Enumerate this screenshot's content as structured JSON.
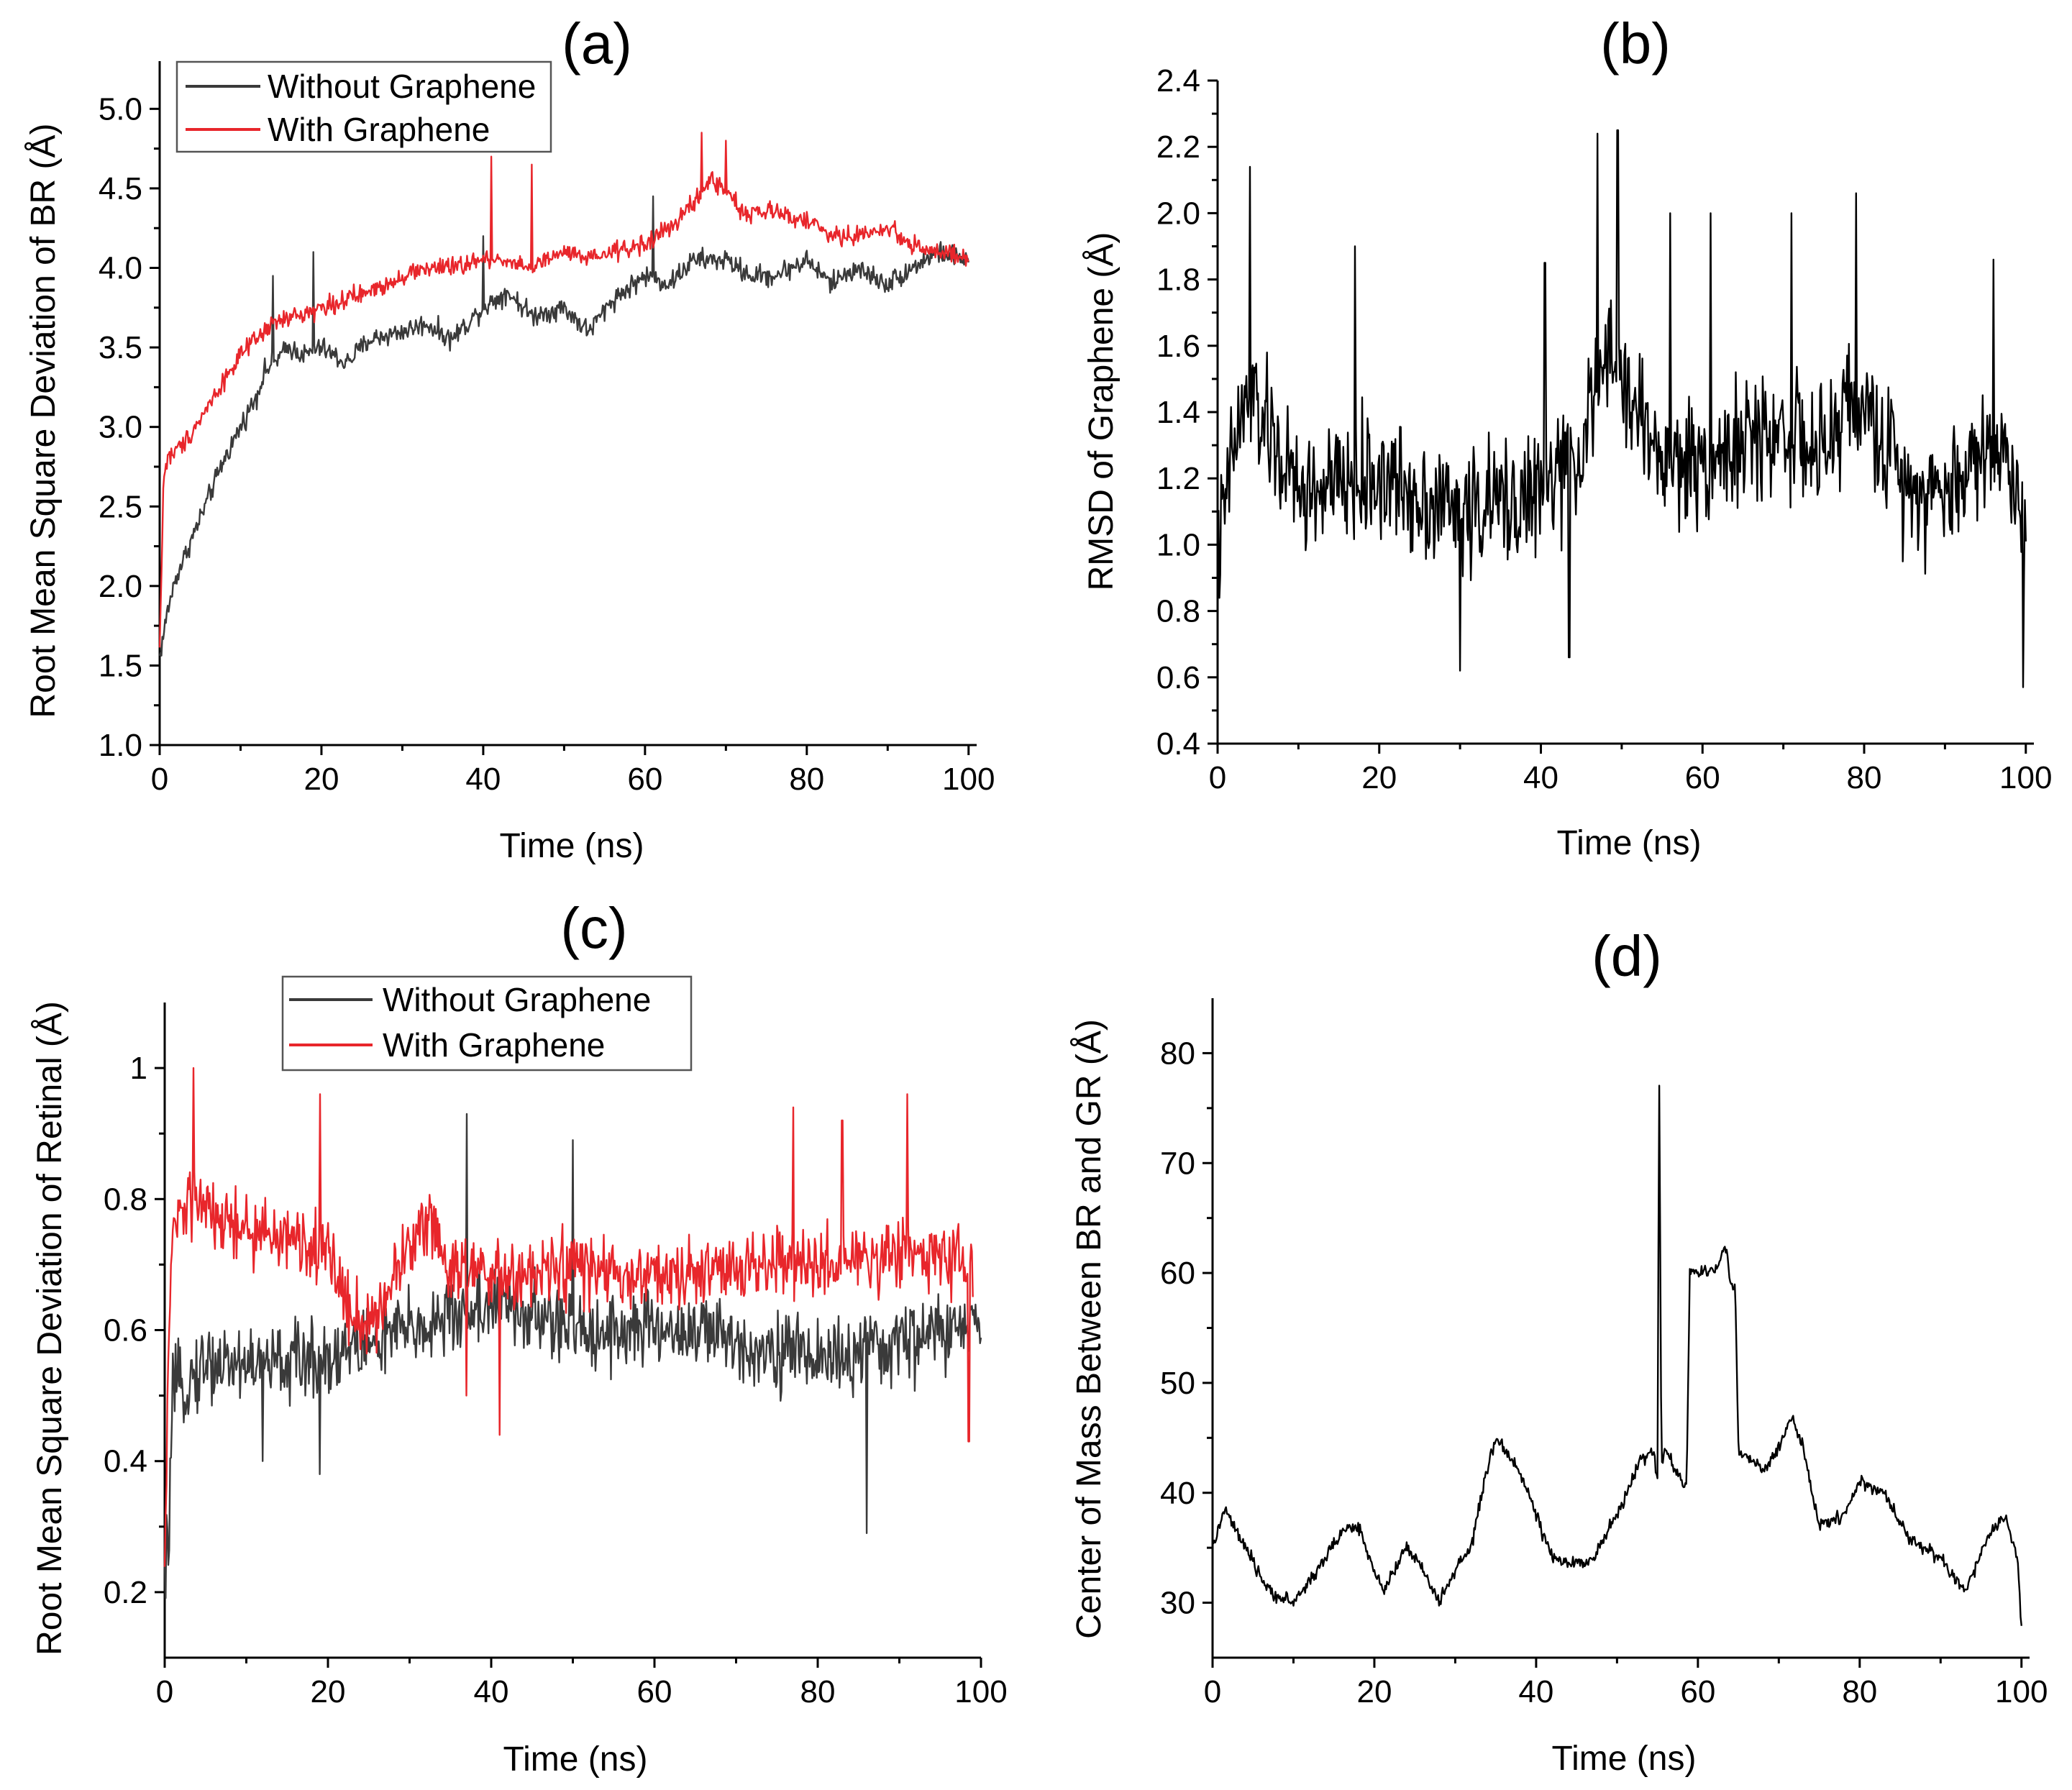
{
  "chart_data": [
    {
      "id": "a",
      "panel_label": "(a)",
      "type": "line",
      "title": "",
      "xlabel": "Time (ns)",
      "ylabel": "Root Mean Square Deviation of BR (Å)",
      "xlim": [
        0,
        101
      ],
      "ylim": [
        1.0,
        5.3
      ],
      "xticks": [
        0,
        20,
        40,
        60,
        80,
        100
      ],
      "yticks": [
        1.0,
        1.5,
        2.0,
        2.5,
        3.0,
        3.5,
        4.0,
        4.5,
        5.0
      ],
      "ytick_labels": [
        "1.0",
        "1.5",
        "2.0",
        "2.5",
        "3.0",
        "3.5",
        "4.0",
        "4.5",
        "5.0"
      ],
      "grid": false,
      "legend": "top-left",
      "series": [
        {
          "name": "Without Graphene",
          "color": "#3a3a3a",
          "x": [
            0,
            1,
            2,
            4,
            6,
            8,
            10,
            12,
            13,
            14,
            16,
            18,
            20,
            23,
            26,
            30,
            33,
            36,
            40,
            43,
            46,
            50,
            53,
            56,
            60,
            63,
            66,
            70,
            73,
            76,
            80,
            83,
            86,
            90,
            93,
            96,
            100
          ],
          "values": [
            1.55,
            1.85,
            2.05,
            2.3,
            2.55,
            2.8,
            3.0,
            3.2,
            3.35,
            3.4,
            3.5,
            3.45,
            3.5,
            3.4,
            3.55,
            3.6,
            3.65,
            3.55,
            3.75,
            3.85,
            3.7,
            3.75,
            3.6,
            3.8,
            3.95,
            3.9,
            4.05,
            4.05,
            3.95,
            3.95,
            4.05,
            3.9,
            4.0,
            3.9,
            4.0,
            4.1,
            4.05
          ],
          "noise": 0.1,
          "spikes": [
            [
              14,
              3.95
            ],
            [
              19,
              4.1
            ],
            [
              40,
              4.2
            ],
            [
              61,
              4.45
            ]
          ]
        },
        {
          "name": "With Graphene",
          "color": "#e8262b",
          "x": [
            0,
            0.5,
            1,
            3,
            5,
            8,
            10,
            12,
            13,
            14,
            17,
            20,
            23,
            26,
            30,
            33,
            36,
            40,
            43,
            46,
            50,
            53,
            56,
            60,
            63,
            66,
            68,
            70,
            72,
            76,
            80,
            83,
            86,
            90,
            93,
            96,
            100
          ],
          "values": [
            1.6,
            2.7,
            2.8,
            2.9,
            3.05,
            3.3,
            3.45,
            3.55,
            3.6,
            3.65,
            3.7,
            3.75,
            3.8,
            3.85,
            3.95,
            4.0,
            4.0,
            4.05,
            4.05,
            4.0,
            4.1,
            4.05,
            4.1,
            4.15,
            4.25,
            4.4,
            4.55,
            4.5,
            4.35,
            4.35,
            4.3,
            4.2,
            4.2,
            4.25,
            4.15,
            4.1,
            4.05
          ],
          "noise": 0.09,
          "spikes": [
            [
              41,
              4.7
            ],
            [
              46,
              4.65
            ],
            [
              67,
              4.85
            ],
            [
              70,
              4.8
            ]
          ]
        }
      ]
    },
    {
      "id": "b",
      "panel_label": "(b)",
      "type": "line",
      "title": "",
      "xlabel": "Time (ns)",
      "ylabel": "RMSD of Graphene (Å)",
      "xlim": [
        0,
        101
      ],
      "ylim": [
        0.4,
        2.4
      ],
      "xticks": [
        0,
        20,
        40,
        60,
        80,
        100
      ],
      "yticks": [
        0.4,
        0.6,
        0.8,
        1.0,
        1.2,
        1.4,
        1.6,
        1.8,
        2.0,
        2.2,
        2.4
      ],
      "ytick_labels": [
        "0.4",
        "0.6",
        "0.8",
        "1.0",
        "1.2",
        "1.4",
        "1.6",
        "1.8",
        "2.0",
        "2.2",
        "2.4"
      ],
      "grid": false,
      "legend": "none",
      "series": [
        {
          "name": "RMSD of Graphene",
          "color": "#000000",
          "x": [
            0,
            2,
            4,
            10,
            20,
            30,
            40,
            45,
            48,
            50,
            55,
            60,
            65,
            70,
            75,
            78,
            80,
            85,
            90,
            95,
            98,
            100
          ],
          "values": [
            0.95,
            1.3,
            1.45,
            1.15,
            1.2,
            1.1,
            1.15,
            1.3,
            1.55,
            1.5,
            1.25,
            1.25,
            1.3,
            1.35,
            1.25,
            1.45,
            1.4,
            1.2,
            1.15,
            1.3,
            1.25,
            1.05
          ],
          "noise": 0.28,
          "spikes": [
            [
              4,
              2.14
            ],
            [
              17,
              1.9
            ],
            [
              40.5,
              1.85
            ],
            [
              47,
              2.24
            ],
            [
              49.5,
              2.25
            ],
            [
              56,
              2.0
            ],
            [
              61,
              2.0
            ],
            [
              71,
              2.0
            ],
            [
              79,
              2.06
            ],
            [
              96,
              1.86
            ],
            [
              99.7,
              0.57
            ],
            [
              30,
              0.62
            ],
            [
              43.5,
              0.66
            ]
          ]
        }
      ]
    },
    {
      "id": "c",
      "panel_label": "(c)",
      "type": "line",
      "title": "",
      "xlabel": "Time (ns)",
      "ylabel": "Root Mean Square Deviation of Retinal (Å)",
      "xlim": [
        0,
        100
      ],
      "ylim": [
        0.1,
        1.1
      ],
      "xticks": [
        0,
        20,
        40,
        60,
        80,
        100
      ],
      "yticks": [
        0.2,
        0.4,
        0.6,
        0.8,
        1.0
      ],
      "ytick_labels": [
        "0.2",
        "0.4",
        "0.6",
        "0.8",
        "1"
      ],
      "grid": false,
      "legend": "top-left",
      "series": [
        {
          "name": "Without Graphene",
          "color": "#3a3a3a",
          "x": [
            0,
            0.5,
            1,
            5,
            10,
            15,
            20,
            25,
            30,
            35,
            40,
            45,
            50,
            55,
            60,
            65,
            70,
            75,
            80,
            85,
            90,
            95,
            100
          ],
          "values": [
            0.2,
            0.3,
            0.5,
            0.55,
            0.55,
            0.55,
            0.56,
            0.58,
            0.6,
            0.62,
            0.64,
            0.62,
            0.6,
            0.6,
            0.6,
            0.6,
            0.58,
            0.57,
            0.56,
            0.56,
            0.58,
            0.6,
            0.6
          ],
          "noise": 0.09,
          "spikes": [
            [
              37,
              0.93
            ],
            [
              50,
              0.89
            ],
            [
              86,
              0.29
            ],
            [
              12,
              0.4
            ],
            [
              19,
              0.38
            ]
          ]
        },
        {
          "name": "With Graphene",
          "color": "#e8262b",
          "x": [
            0,
            0.5,
            1,
            3,
            5,
            10,
            15,
            20,
            22,
            25,
            28,
            32,
            35,
            40,
            45,
            50,
            55,
            60,
            65,
            70,
            75,
            80,
            85,
            90,
            95,
            99
          ],
          "values": [
            0.2,
            0.6,
            0.75,
            0.8,
            0.78,
            0.75,
            0.74,
            0.72,
            0.65,
            0.6,
            0.68,
            0.78,
            0.7,
            0.68,
            0.68,
            0.7,
            0.68,
            0.68,
            0.68,
            0.7,
            0.7,
            0.7,
            0.7,
            0.72,
            0.72,
            0.7
          ],
          "noise": 0.08,
          "spikes": [
            [
              3.5,
              1.0
            ],
            [
              19,
              0.96
            ],
            [
              37,
              0.5
            ],
            [
              41,
              0.44
            ],
            [
              77,
              0.94
            ],
            [
              83,
              0.92
            ],
            [
              91,
              0.96
            ],
            [
              98.5,
              0.43
            ]
          ]
        }
      ]
    },
    {
      "id": "d",
      "panel_label": "(d)",
      "type": "line",
      "title": "",
      "xlabel": "Time (ns)",
      "ylabel": "Center of Mass Between BR and GR (Å)",
      "xlim": [
        0,
        101
      ],
      "ylim": [
        25,
        85
      ],
      "xticks": [
        0,
        20,
        40,
        60,
        80,
        100
      ],
      "yticks": [
        30,
        40,
        50,
        60,
        70,
        80
      ],
      "ytick_labels": [
        "30",
        "40",
        "50",
        "60",
        "70",
        "80"
      ],
      "grid": false,
      "legend": "none",
      "series": [
        {
          "name": "Center of Mass",
          "color": "#000000",
          "x": [
            0,
            1.5,
            4,
            7,
            10,
            13,
            16,
            18,
            19,
            21,
            24,
            26,
            28,
            30,
            32,
            33,
            35,
            36,
            38,
            40,
            42,
            44,
            47,
            50,
            53,
            54.5,
            55,
            55.2,
            55.5,
            56,
            58,
            58.6,
            59,
            62,
            63.5,
            64,
            64.6,
            65,
            68,
            70,
            71.5,
            73,
            75,
            78,
            80,
            83,
            86,
            90,
            93,
            96,
            98,
            99.5,
            100
          ],
          "values": [
            35,
            38.5,
            35,
            31,
            30,
            33,
            36.5,
            37,
            35,
            31,
            35,
            33,
            30,
            33,
            35,
            39,
            45,
            44,
            42,
            38,
            34,
            33.5,
            34,
            38,
            43,
            44,
            41,
            79.5,
            42,
            44,
            41,
            41,
            60,
            60,
            62.5,
            59,
            59,
            44,
            42,
            44,
            47,
            44,
            37,
            38,
            41,
            40,
            36,
            34,
            31,
            36,
            38,
            34,
            28
          ],
          "noise": 0.9,
          "spikes": []
        }
      ]
    }
  ]
}
